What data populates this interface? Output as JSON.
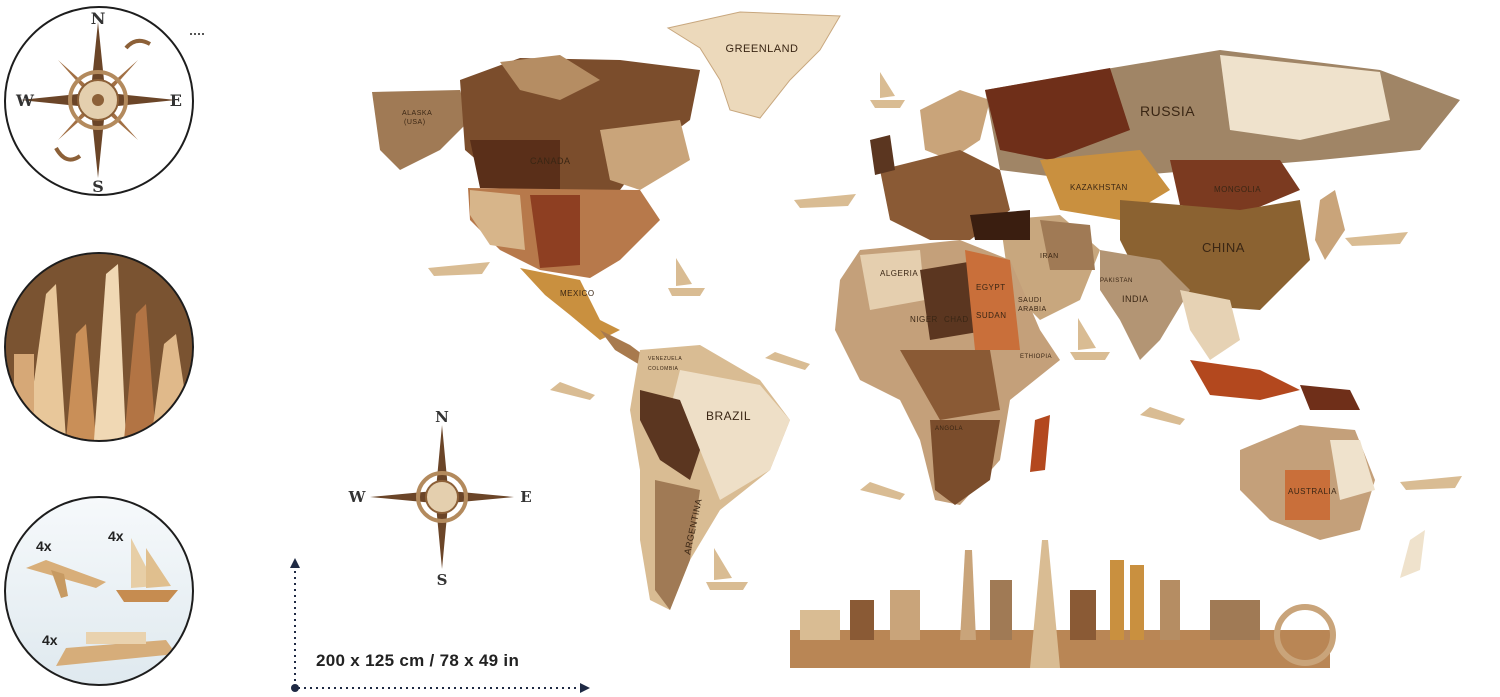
{
  "dimensions": {
    "label": "200 x 125 cm / 78 x 49 in"
  },
  "compass": {
    "north": "N",
    "south": "S",
    "west": "W",
    "east": "E"
  },
  "accessories": {
    "planes": "4x",
    "ships": "4x",
    "cruise": "4x"
  },
  "map_labels": {
    "greenland": "GREENLAND",
    "canada": "CANADA",
    "alaska": "ALASKA",
    "alaska_sub": "(USA)",
    "mexico": "MEXICO",
    "brazil": "BRAZIL",
    "argentina": "ARGENTINA",
    "russia": "RUSSIA",
    "kazakhstan": "KAZAKHSTAN",
    "mongolia": "MONGOLIA",
    "china": "CHINA",
    "india": "INDIA",
    "iran": "IRAN",
    "algeria": "ALGERIA",
    "niger": "NIGER",
    "chad": "CHAD",
    "sudan": "SUDAN",
    "egypt": "EGYPT",
    "australia": "AUSTRALIA",
    "saudi": "SAUDI",
    "arabia": "ARABIA",
    "ethiopia": "ETHIOPIA",
    "angola": "ANGOLA",
    "venezuela": "VENEZUELA",
    "colombia": "COLOMBIA",
    "pakistan": "PAKISTAN"
  },
  "colors": {
    "dark_wood": "#5b3620",
    "mid_wood": "#8a5a35",
    "light_wood": "#d9bc93",
    "pale_wood": "#eedfc7",
    "red_wood": "#8e3f22",
    "gold_wood": "#c9903f"
  }
}
